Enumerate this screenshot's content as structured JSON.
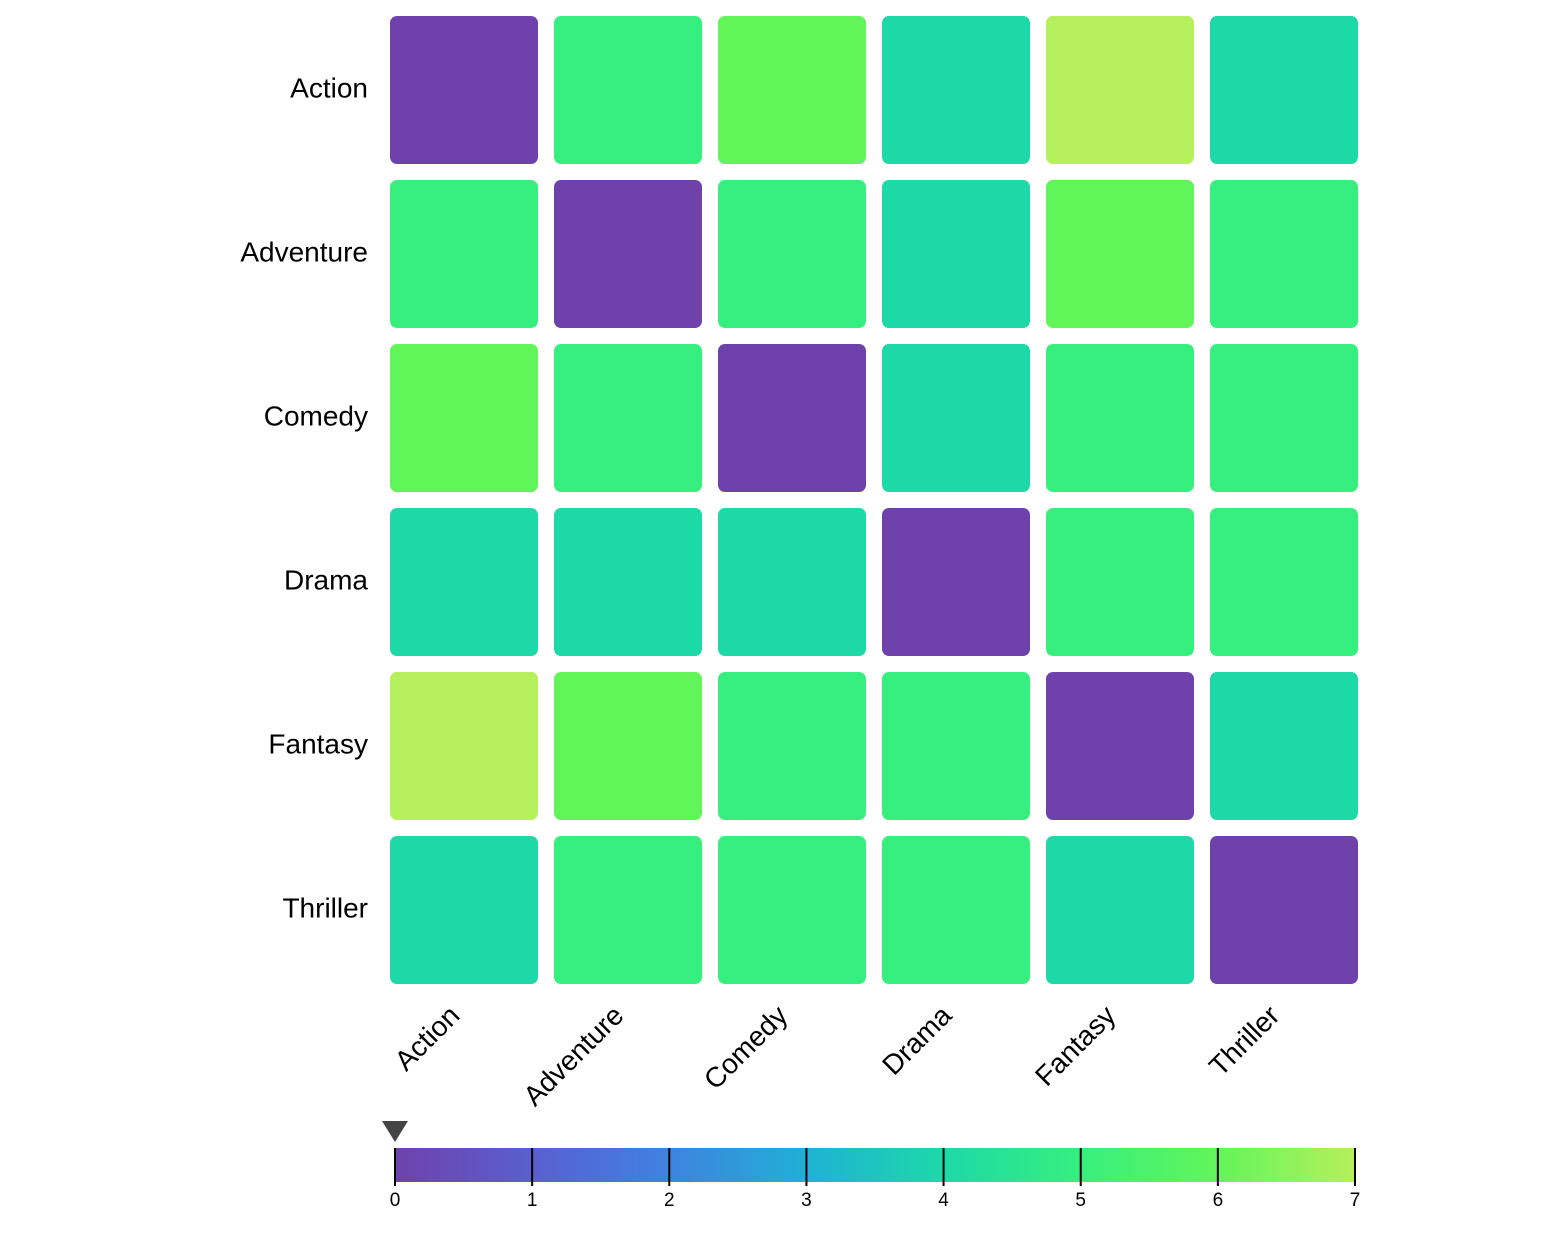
{
  "chart_data": {
    "type": "heatmap",
    "title": "",
    "xlabel": "",
    "ylabel": "",
    "rows": [
      "Action",
      "Adventure",
      "Comedy",
      "Drama",
      "Fantasy",
      "Thriller"
    ],
    "columns": [
      "Action",
      "Adventure",
      "Comedy",
      "Drama",
      "Fantasy",
      "Thriller"
    ],
    "values": [
      [
        0,
        5,
        6,
        4,
        7,
        4
      ],
      [
        5,
        0,
        5,
        4,
        6,
        5
      ],
      [
        6,
        5,
        0,
        4,
        5,
        5
      ],
      [
        4,
        4,
        4,
        0,
        5,
        5
      ],
      [
        7,
        6,
        5,
        5,
        0,
        4
      ],
      [
        4,
        5,
        5,
        5,
        4,
        0
      ]
    ],
    "colorbar": {
      "range": [
        0,
        7
      ],
      "ticks": [
        "0",
        "1",
        "2",
        "3",
        "4",
        "5",
        "6",
        "7"
      ],
      "marker_value": 0,
      "colors": [
        "#6f42ab",
        "#5a5fd0",
        "#3f82e0",
        "#1fb1d4",
        "#1dd9a8",
        "#37ef7e",
        "#62f55a",
        "#b6f05c"
      ]
    },
    "grid": false,
    "legend": "colorbar-bottom"
  }
}
